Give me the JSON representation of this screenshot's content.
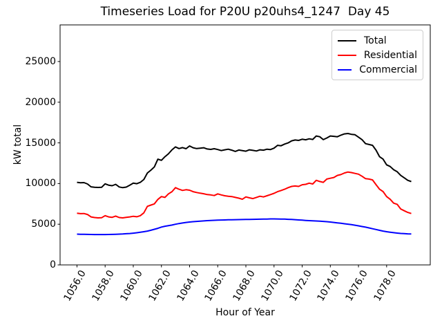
{
  "chart_data": {
    "type": "line",
    "title": "Timeseries Load for P20U p20uhs4_1247  Day 45",
    "xlabel": "Hour of Year",
    "ylabel": "kW total",
    "grid": false,
    "legend_position": "upper right",
    "xlim": [
      1054.8,
      1081.1
    ],
    "ylim": [
      0,
      29500
    ],
    "xticks": [
      1056,
      1058,
      1060,
      1062,
      1064,
      1066,
      1068,
      1070,
      1072,
      1074,
      1076,
      1078
    ],
    "xtick_labels": [
      "1056.0",
      "1058.0",
      "1060.0",
      "1062.0",
      "1064.0",
      "1066.0",
      "1068.0",
      "1070.0",
      "1072.0",
      "1074.0",
      "1076.0",
      "1078.0"
    ],
    "yticks": [
      0,
      5000,
      10000,
      15000,
      20000,
      25000
    ],
    "ytick_labels": [
      "0",
      "5000",
      "10000",
      "15000",
      "20000",
      "25000"
    ],
    "x": [
      1056.0,
      1056.25,
      1056.5,
      1056.75,
      1057.0,
      1057.25,
      1057.5,
      1057.75,
      1058.0,
      1058.25,
      1058.5,
      1058.75,
      1059.0,
      1059.25,
      1059.5,
      1059.75,
      1060.0,
      1060.25,
      1060.5,
      1060.75,
      1061.0,
      1061.25,
      1061.5,
      1061.75,
      1062.0,
      1062.25,
      1062.5,
      1062.75,
      1063.0,
      1063.25,
      1063.5,
      1063.75,
      1064.0,
      1064.25,
      1064.5,
      1064.75,
      1065.0,
      1065.25,
      1065.5,
      1065.75,
      1066.0,
      1066.25,
      1066.5,
      1066.75,
      1067.0,
      1067.25,
      1067.5,
      1067.75,
      1068.0,
      1068.25,
      1068.5,
      1068.75,
      1069.0,
      1069.25,
      1069.5,
      1069.75,
      1070.0,
      1070.25,
      1070.5,
      1070.75,
      1071.0,
      1071.25,
      1071.5,
      1071.75,
      1072.0,
      1072.25,
      1072.5,
      1072.75,
      1073.0,
      1073.25,
      1073.5,
      1073.75,
      1074.0,
      1074.25,
      1074.5,
      1074.75,
      1075.0,
      1075.25,
      1075.5,
      1075.75,
      1076.0,
      1076.25,
      1076.5,
      1076.75,
      1077.0,
      1077.25,
      1077.5,
      1077.75,
      1078.0,
      1078.25,
      1078.5,
      1078.75,
      1079.0,
      1079.25,
      1079.5,
      1079.75
    ],
    "series": [
      {
        "name": "Total",
        "color": "#000000",
        "values": [
          10150,
          10100,
          10120,
          9950,
          9600,
          9550,
          9520,
          9540,
          9960,
          9800,
          9730,
          9900,
          9580,
          9500,
          9560,
          9800,
          10050,
          9980,
          10150,
          10500,
          11300,
          11650,
          12050,
          13000,
          12850,
          13300,
          13650,
          14150,
          14500,
          14300,
          14420,
          14280,
          14620,
          14400,
          14300,
          14350,
          14400,
          14250,
          14200,
          14280,
          14180,
          14050,
          14150,
          14220,
          14100,
          13950,
          14120,
          14050,
          13980,
          14150,
          14080,
          14000,
          14150,
          14100,
          14220,
          14180,
          14350,
          14700,
          14650,
          14850,
          15000,
          15250,
          15350,
          15300,
          15450,
          15380,
          15500,
          15420,
          15850,
          15750,
          15400,
          15600,
          15850,
          15800,
          15750,
          15950,
          16100,
          16150,
          16050,
          16000,
          15700,
          15400,
          14900,
          14800,
          14700,
          14100,
          13300,
          13000,
          12300,
          12100,
          11700,
          11450,
          11000,
          10700,
          10400,
          10240
        ]
      },
      {
        "name": "Residential",
        "color": "#ff0000",
        "values": [
          6350,
          6300,
          6320,
          6200,
          5900,
          5820,
          5780,
          5800,
          6050,
          5900,
          5850,
          6000,
          5820,
          5780,
          5850,
          5900,
          5980,
          5920,
          6050,
          6400,
          7200,
          7350,
          7500,
          8050,
          8400,
          8300,
          8730,
          9000,
          9495,
          9300,
          9155,
          9240,
          9180,
          9000,
          8900,
          8815,
          8750,
          8650,
          8600,
          8530,
          8730,
          8600,
          8500,
          8445,
          8400,
          8300,
          8200,
          8070,
          8360,
          8250,
          8155,
          8300,
          8445,
          8360,
          8500,
          8650,
          8800,
          9000,
          9150,
          9300,
          9500,
          9650,
          9700,
          9650,
          9850,
          9900,
          10050,
          9950,
          10400,
          10250,
          10150,
          10550,
          10650,
          10750,
          11000,
          11100,
          11300,
          11420,
          11350,
          11250,
          11150,
          10900,
          10600,
          10550,
          10450,
          9860,
          9300,
          9010,
          8400,
          8070,
          7590,
          7450,
          6880,
          6655,
          6450,
          6315
        ]
      },
      {
        "name": "Commercial",
        "color": "#0000ff",
        "values": [
          3780,
          3770,
          3755,
          3745,
          3740,
          3735,
          3730,
          3730,
          3735,
          3740,
          3750,
          3765,
          3780,
          3800,
          3830,
          3860,
          3900,
          3950,
          4010,
          4080,
          4160,
          4260,
          4380,
          4500,
          4650,
          4750,
          4820,
          4900,
          5000,
          5080,
          5150,
          5220,
          5270,
          5310,
          5350,
          5380,
          5410,
          5440,
          5460,
          5480,
          5500,
          5515,
          5530,
          5540,
          5550,
          5560,
          5570,
          5580,
          5585,
          5590,
          5600,
          5610,
          5620,
          5630,
          5640,
          5650,
          5655,
          5648,
          5640,
          5625,
          5605,
          5585,
          5560,
          5530,
          5500,
          5470,
          5440,
          5420,
          5400,
          5380,
          5350,
          5310,
          5270,
          5220,
          5170,
          5120,
          5060,
          5010,
          4950,
          4880,
          4800,
          4720,
          4640,
          4550,
          4450,
          4350,
          4250,
          4160,
          4080,
          4020,
          3960,
          3910,
          3870,
          3840,
          3820,
          3805
        ]
      }
    ]
  }
}
